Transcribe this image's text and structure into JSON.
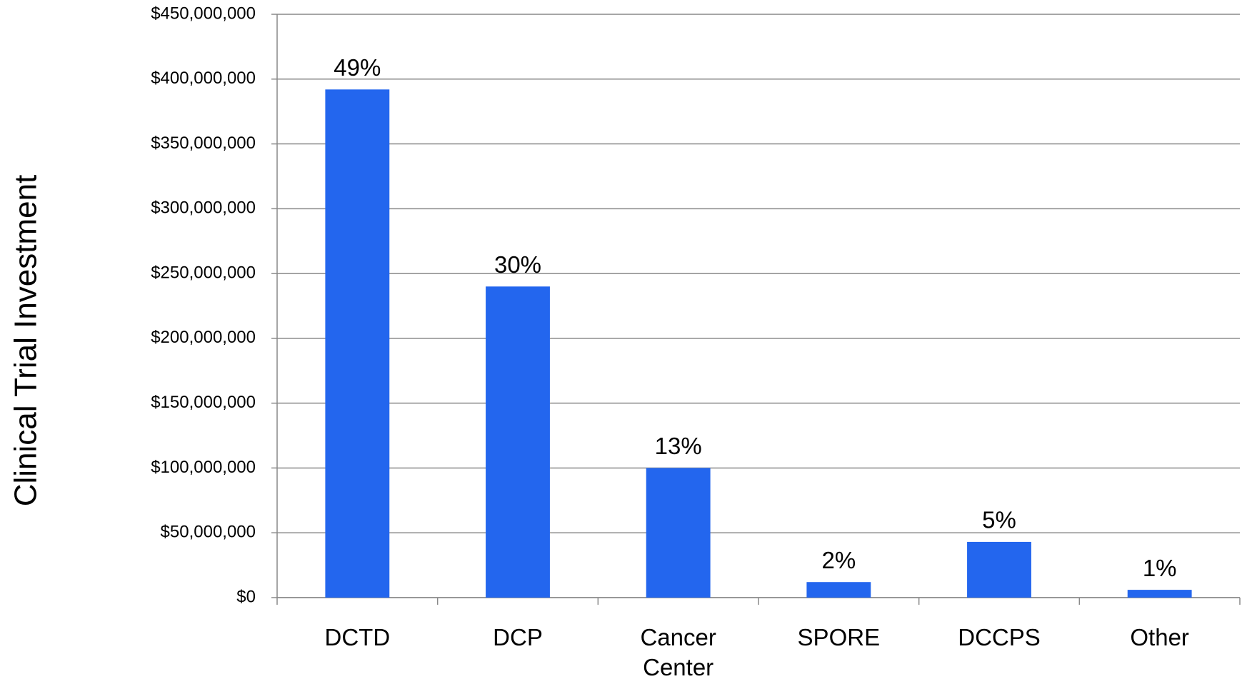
{
  "chart_data": {
    "type": "bar",
    "y_axis_label": "Clinical Trial Investment",
    "categories": [
      "DCTD",
      "DCP",
      "Cancer Center",
      "SPORE",
      "DCCPS",
      "Other"
    ],
    "values": [
      392000000,
      240000000,
      100000000,
      12000000,
      43000000,
      6000000
    ],
    "share_labels": [
      "49%",
      "30%",
      "13%",
      "2%",
      "5%",
      "1%"
    ],
    "color": "#2366ee",
    "ylim": [
      0,
      450000000
    ],
    "yticks": [
      {
        "value": 0,
        "label": "$0"
      },
      {
        "value": 50000000,
        "label": "$50,000,000"
      },
      {
        "value": 100000000,
        "label": "$100,000,000"
      },
      {
        "value": 150000000,
        "label": "$150,000,000"
      },
      {
        "value": 200000000,
        "label": "$200,000,000"
      },
      {
        "value": 250000000,
        "label": "$250,000,000"
      },
      {
        "value": 300000000,
        "label": "$300,000,000"
      },
      {
        "value": 350000000,
        "label": "$350,000,000"
      },
      {
        "value": 400000000,
        "label": "$400,000,000"
      },
      {
        "value": 450000000,
        "label": "$450,000,000"
      }
    ],
    "grid": true
  }
}
